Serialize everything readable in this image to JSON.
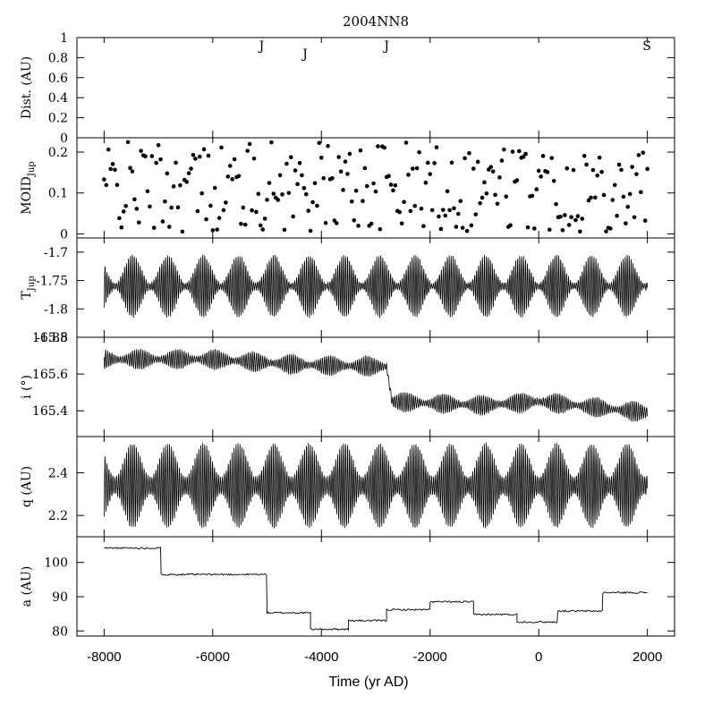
{
  "chart_data": {
    "type": "line",
    "title": "2004NN8",
    "xlabel": "Time (yr AD)",
    "xlim": [
      -8500,
      2500
    ],
    "x_ticks": [
      -8000,
      -6000,
      -4000,
      -2000,
      0,
      2000
    ],
    "x_tick_labels": [
      "-8000",
      "-6000",
      "-4000",
      "-2000",
      "0",
      "2000"
    ],
    "panels": [
      {
        "id": "dist",
        "ylabel": "Dist. (AU)",
        "ylim": [
          0,
          1
        ],
        "yticks": [
          0,
          0.2,
          0.4,
          0.6,
          0.8,
          1
        ],
        "ytick_labels": [
          "0",
          "0.2",
          "0.4",
          "0.6",
          "0.8",
          "1"
        ],
        "type": "annotations",
        "annotations": [
          {
            "x": -5100,
            "text": "J"
          },
          {
            "x": -4300,
            "text": "J"
          },
          {
            "x": -2800,
            "text": "J"
          },
          {
            "x": 1990,
            "text": "S"
          }
        ]
      },
      {
        "id": "moid",
        "ylabel": "MOID",
        "ylabel_sub": "Jup",
        "ylim": [
          -0.01,
          0.235
        ],
        "yticks": [
          0,
          0.1,
          0.2
        ],
        "ytick_labels": [
          "0",
          "0.1",
          "0.2"
        ],
        "type": "scatter",
        "note": "points sampled every 40 yr, range approx 0.005-0.225 AU"
      },
      {
        "id": "tjup",
        "ylabel": "T",
        "ylabel_sub": "Jup",
        "ylim": [
          -1.85,
          -1.675
        ],
        "yticks": [
          -1.7,
          -1.75,
          -1.8,
          -1.85
        ],
        "ytick_labels": [
          "-1.7",
          "-1.75",
          "-1.8",
          "-1.85"
        ],
        "type": "line",
        "mean": -1.76,
        "amplitude_range": [
          0.005,
          0.055
        ]
      },
      {
        "id": "incl",
        "ylabel": "i (°)",
        "ylim": [
          165.26,
          165.8
        ],
        "yticks": [
          165.4,
          165.6,
          165.8
        ],
        "ytick_labels": [
          "165.4",
          "165.6",
          "165.8"
        ],
        "type": "line",
        "trend": [
          {
            "x": -8000,
            "y": 165.68
          },
          {
            "x": -6000,
            "y": 165.68
          },
          {
            "x": -4400,
            "y": 165.65
          },
          {
            "x": -2800,
            "y": 165.64
          },
          {
            "x": -2700,
            "y": 165.45
          },
          {
            "x": -1000,
            "y": 165.43
          },
          {
            "x": 0,
            "y": 165.45
          },
          {
            "x": 2000,
            "y": 165.39
          }
        ]
      },
      {
        "id": "q",
        "ylabel": "q (AU)",
        "ylim": [
          2.1,
          2.57
        ],
        "yticks": [
          2.2,
          2.4
        ],
        "ytick_labels": [
          "2.2",
          "2.4"
        ],
        "type": "line",
        "mean": 2.34,
        "amplitude_range": [
          0.04,
          0.2
        ]
      },
      {
        "id": "a",
        "ylabel": "a (AU)",
        "ylim": [
          78.5,
          107.5
        ],
        "yticks": [
          80,
          90,
          100
        ],
        "ytick_labels": [
          "80",
          "90",
          "100"
        ],
        "type": "step",
        "steps": [
          {
            "x0": -8000,
            "x1": -6950,
            "y": 104.2
          },
          {
            "x0": -6950,
            "x1": -5000,
            "y": 96.5
          },
          {
            "x0": -5000,
            "x1": -4200,
            "y": 85.3
          },
          {
            "x0": -4200,
            "x1": -3500,
            "y": 80.5
          },
          {
            "x0": -3500,
            "x1": -2800,
            "y": 83.0
          },
          {
            "x0": -2800,
            "x1": -2000,
            "y": 86.2
          },
          {
            "x0": -2000,
            "x1": -1200,
            "y": 88.5
          },
          {
            "x0": -1200,
            "x1": -400,
            "y": 84.8
          },
          {
            "x0": -400,
            "x1": 350,
            "y": 82.6
          },
          {
            "x0": 350,
            "x1": 1180,
            "y": 85.8
          },
          {
            "x0": 1180,
            "x1": 2000,
            "y": 91.2
          }
        ]
      }
    ]
  }
}
